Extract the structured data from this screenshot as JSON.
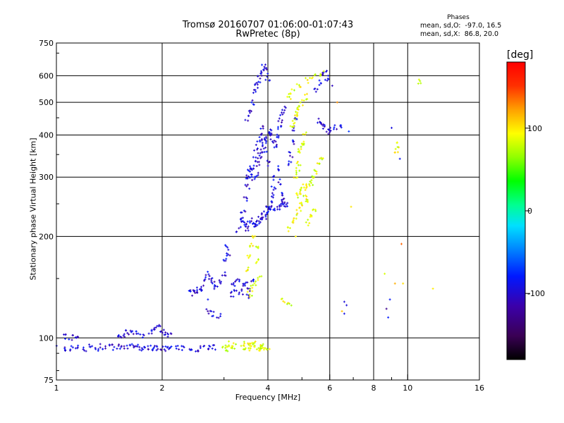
{
  "header": {
    "title_line1": "Tromsø 20160707 01:06:00-01:07:43",
    "title_line2": "RwPretec (8p)",
    "stats_heading": "Phases",
    "stats_o": "mean, sd,O:  -97.0, 16.5",
    "stats_x": "mean, sd,X:  86.8, 20.0"
  },
  "colorbar": {
    "unit": "[deg]",
    "min": -180,
    "max": 180,
    "ticks": [
      {
        "value": 100,
        "label": "100"
      },
      {
        "value": 0,
        "label": "0"
      },
      {
        "value": -100,
        "label": "-100"
      }
    ]
  },
  "chart_data": {
    "type": "scatter",
    "title": "Tromsø 20160707 01:06:00-01:07:43",
    "subtitle": "RwPretec (8p)",
    "xlabel": "Frequency [MHz]",
    "ylabel": "Stationary phase Virtual Height [km]",
    "x_scale": "log",
    "y_scale": "log",
    "xlim": [
      1,
      16
    ],
    "ylim": [
      75,
      750
    ],
    "grid": true,
    "x_ticks": [
      {
        "value": 1,
        "label": "1"
      },
      {
        "value": 2,
        "label": "2"
      },
      {
        "value": 4,
        "label": "4"
      },
      {
        "value": 6,
        "label": "6"
      },
      {
        "value": 8,
        "label": "8"
      },
      {
        "value": 10,
        "label": "10"
      },
      {
        "value": 16,
        "label": "16"
      }
    ],
    "x_minor": [
      3,
      5,
      7,
      9
    ],
    "y_ticks": [
      {
        "value": 75,
        "label": "75"
      },
      {
        "value": 100,
        "label": "100"
      },
      {
        "value": 200,
        "label": "200"
      },
      {
        "value": 300,
        "label": "300"
      },
      {
        "value": 400,
        "label": "400"
      },
      {
        "value": 500,
        "label": "500"
      },
      {
        "value": 600,
        "label": "600"
      },
      {
        "value": 750,
        "label": "750"
      }
    ],
    "color_value": "phase [deg]",
    "series": [
      {
        "phase_mean": -97.0,
        "points": [
          [
            1.0,
            94
          ],
          [
            1.05,
            93
          ],
          [
            1.1,
            93
          ],
          [
            1.15,
            94
          ],
          [
            1.2,
            93
          ],
          [
            1.25,
            94
          ],
          [
            1.3,
            93
          ],
          [
            1.35,
            94
          ],
          [
            1.4,
            94
          ],
          [
            1.45,
            94
          ],
          [
            1.5,
            94
          ],
          [
            1.55,
            93
          ],
          [
            1.6,
            94
          ],
          [
            1.65,
            94
          ],
          [
            1.7,
            94
          ],
          [
            1.75,
            93
          ],
          [
            1.8,
            93
          ],
          [
            1.85,
            94
          ],
          [
            1.9,
            93
          ],
          [
            1.95,
            93
          ],
          [
            2.0,
            94
          ],
          [
            2.05,
            93
          ],
          [
            2.1,
            93
          ],
          [
            2.2,
            93
          ],
          [
            2.3,
            93
          ],
          [
            2.4,
            93
          ],
          [
            2.5,
            93
          ],
          [
            2.6,
            94
          ],
          [
            2.7,
            94
          ],
          [
            2.8,
            94
          ],
          [
            1.05,
            101
          ],
          [
            1.1,
            100
          ],
          [
            1.15,
            102
          ],
          [
            1.5,
            100
          ],
          [
            1.55,
            102
          ],
          [
            1.6,
            104
          ],
          [
            1.65,
            103
          ],
          [
            1.7,
            103
          ],
          [
            1.75,
            101
          ],
          [
            1.85,
            105
          ],
          [
            1.9,
            106
          ],
          [
            1.95,
            108
          ],
          [
            2.0,
            105
          ],
          [
            2.05,
            104
          ],
          [
            2.1,
            102
          ],
          [
            2.4,
            136
          ],
          [
            2.45,
            137
          ],
          [
            2.5,
            136
          ],
          [
            2.55,
            139
          ],
          [
            2.6,
            141
          ],
          [
            2.65,
            149
          ],
          [
            2.7,
            155
          ],
          [
            2.75,
            148
          ],
          [
            2.8,
            145
          ],
          [
            2.85,
            141
          ],
          [
            2.9,
            147
          ],
          [
            2.7,
            120
          ],
          [
            2.8,
            118
          ],
          [
            2.9,
            117
          ],
          [
            3.0,
            155
          ],
          [
            3.0,
            170
          ],
          [
            3.05,
            185
          ],
          [
            3.1,
            175
          ],
          [
            3.15,
            135
          ],
          [
            3.2,
            145
          ],
          [
            3.25,
            140
          ],
          [
            3.3,
            150
          ],
          [
            3.35,
            137
          ],
          [
            3.4,
            142
          ],
          [
            3.45,
            145
          ],
          [
            3.5,
            132
          ],
          [
            3.55,
            140
          ],
          [
            3.6,
            148
          ],
          [
            3.3,
            210
          ],
          [
            3.35,
            225
          ],
          [
            3.4,
            240
          ],
          [
            3.45,
            260
          ],
          [
            3.5,
            280
          ],
          [
            3.55,
            300
          ],
          [
            3.6,
            320
          ],
          [
            3.65,
            340
          ],
          [
            3.7,
            360
          ],
          [
            3.75,
            380
          ],
          [
            3.8,
            400
          ],
          [
            3.85,
            420
          ],
          [
            3.9,
            390
          ],
          [
            3.95,
            360
          ],
          [
            4.0,
            330
          ],
          [
            3.4,
            220
          ],
          [
            3.45,
            215
          ],
          [
            3.5,
            212
          ],
          [
            3.55,
            218
          ],
          [
            3.6,
            222
          ],
          [
            3.65,
            218
          ],
          [
            3.7,
            216
          ],
          [
            3.75,
            222
          ],
          [
            3.8,
            225
          ],
          [
            3.85,
            230
          ],
          [
            3.9,
            228
          ],
          [
            3.95,
            234
          ],
          [
            4.0,
            238
          ],
          [
            3.5,
            450
          ],
          [
            3.55,
            470
          ],
          [
            3.6,
            500
          ],
          [
            3.65,
            540
          ],
          [
            3.7,
            560
          ],
          [
            3.75,
            580
          ],
          [
            3.8,
            600
          ],
          [
            3.85,
            620
          ],
          [
            3.9,
            640
          ],
          [
            3.95,
            620
          ],
          [
            4.0,
            590
          ],
          [
            3.5,
            300
          ],
          [
            3.55,
            310
          ],
          [
            3.6,
            320
          ],
          [
            3.65,
            295
          ],
          [
            3.7,
            305
          ],
          [
            3.75,
            330
          ],
          [
            3.8,
            345
          ],
          [
            3.85,
            360
          ],
          [
            3.9,
            375
          ],
          [
            3.95,
            390
          ],
          [
            4.0,
            400
          ],
          [
            4.05,
            410
          ],
          [
            4.1,
            395
          ],
          [
            4.15,
            385
          ],
          [
            4.2,
            375
          ],
          [
            4.25,
            400
          ],
          [
            4.3,
            420
          ],
          [
            4.35,
            440
          ],
          [
            4.4,
            460
          ],
          [
            4.45,
            480
          ],
          [
            4.1,
            240
          ],
          [
            4.2,
            242
          ],
          [
            4.3,
            244
          ],
          [
            4.4,
            246
          ],
          [
            4.5,
            247
          ],
          [
            4.0,
            245
          ],
          [
            4.05,
            250
          ],
          [
            4.1,
            265
          ],
          [
            4.15,
            280
          ],
          [
            4.2,
            300
          ],
          [
            4.25,
            320
          ],
          [
            4.3,
            290
          ],
          [
            4.35,
            270
          ],
          [
            4.4,
            255
          ],
          [
            4.45,
            250
          ],
          [
            4.6,
            330
          ],
          [
            4.65,
            350
          ],
          [
            4.7,
            380
          ],
          [
            4.75,
            420
          ],
          [
            4.8,
            450
          ],
          [
            5.5,
            540
          ],
          [
            5.6,
            570
          ],
          [
            5.7,
            600
          ],
          [
            5.8,
            610
          ],
          [
            5.9,
            590
          ],
          [
            5.6,
            440
          ],
          [
            5.7,
            430
          ],
          [
            5.8,
            420
          ],
          [
            5.9,
            410
          ],
          [
            6.0,
            415
          ],
          [
            6.2,
            420
          ],
          [
            6.4,
            425
          ]
        ]
      },
      {
        "phase_mean": 86.8,
        "points": [
          [
            3.0,
            95
          ],
          [
            3.05,
            93
          ],
          [
            3.1,
            96
          ],
          [
            3.15,
            95
          ],
          [
            3.2,
            94
          ],
          [
            3.4,
            94
          ],
          [
            3.45,
            96
          ],
          [
            3.5,
            95
          ],
          [
            3.55,
            93
          ],
          [
            3.6,
            95
          ],
          [
            3.65,
            96
          ],
          [
            3.7,
            94
          ],
          [
            3.75,
            93
          ],
          [
            3.8,
            95
          ],
          [
            3.85,
            94
          ],
          [
            3.9,
            93
          ],
          [
            4.0,
            94
          ],
          [
            3.5,
            160
          ],
          [
            3.55,
            175
          ],
          [
            3.6,
            190
          ],
          [
            3.65,
            200
          ],
          [
            3.7,
            185
          ],
          [
            3.75,
            170
          ],
          [
            3.8,
            150
          ],
          [
            3.55,
            135
          ],
          [
            3.6,
            140
          ],
          [
            3.65,
            145
          ],
          [
            4.6,
            210
          ],
          [
            4.7,
            220
          ],
          [
            4.8,
            230
          ],
          [
            4.9,
            240
          ],
          [
            5.0,
            250
          ],
          [
            5.1,
            260
          ],
          [
            5.2,
            255
          ],
          [
            4.8,
            265
          ],
          [
            4.9,
            270
          ],
          [
            5.0,
            275
          ],
          [
            5.1,
            280
          ],
          [
            5.2,
            285
          ],
          [
            5.3,
            290
          ],
          [
            5.4,
            300
          ],
          [
            5.5,
            310
          ],
          [
            5.6,
            330
          ],
          [
            5.7,
            340
          ],
          [
            4.8,
            300
          ],
          [
            4.85,
            315
          ],
          [
            4.9,
            330
          ],
          [
            4.95,
            360
          ],
          [
            5.0,
            370
          ],
          [
            5.05,
            380
          ],
          [
            5.1,
            400
          ],
          [
            4.7,
            420
          ],
          [
            4.75,
            440
          ],
          [
            4.8,
            460
          ],
          [
            4.85,
            470
          ],
          [
            4.9,
            480
          ],
          [
            5.0,
            500
          ],
          [
            5.1,
            520
          ],
          [
            4.6,
            520
          ],
          [
            4.7,
            540
          ],
          [
            4.9,
            560
          ],
          [
            5.2,
            580
          ],
          [
            5.4,
            600
          ],
          [
            5.7,
            610
          ],
          [
            5.2,
            220
          ],
          [
            5.3,
            230
          ],
          [
            5.4,
            240
          ],
          [
            4.6,
            125
          ],
          [
            4.4,
            130
          ],
          [
            9.4,
            375
          ],
          [
            9.3,
            360
          ],
          [
            10.8,
            575
          ]
        ]
      }
    ],
    "extra_points": [
      [
        5.9,
        580
      ],
      [
        6.1,
        560
      ],
      [
        6.3,
        500
      ],
      [
        6.8,
        410
      ],
      [
        6.9,
        245
      ],
      [
        9.0,
        420
      ],
      [
        9.5,
        340
      ],
      [
        6.5,
        120
      ],
      [
        6.6,
        128
      ],
      [
        6.7,
        125
      ],
      [
        6.6,
        118
      ],
      [
        8.6,
        155
      ],
      [
        8.7,
        122
      ],
      [
        8.8,
        115
      ],
      [
        8.9,
        130
      ],
      [
        9.2,
        145
      ],
      [
        9.6,
        190
      ],
      [
        9.7,
        145
      ],
      [
        11.8,
        140
      ],
      [
        4.8,
        200
      ],
      [
        2.7,
        130
      ]
    ]
  }
}
